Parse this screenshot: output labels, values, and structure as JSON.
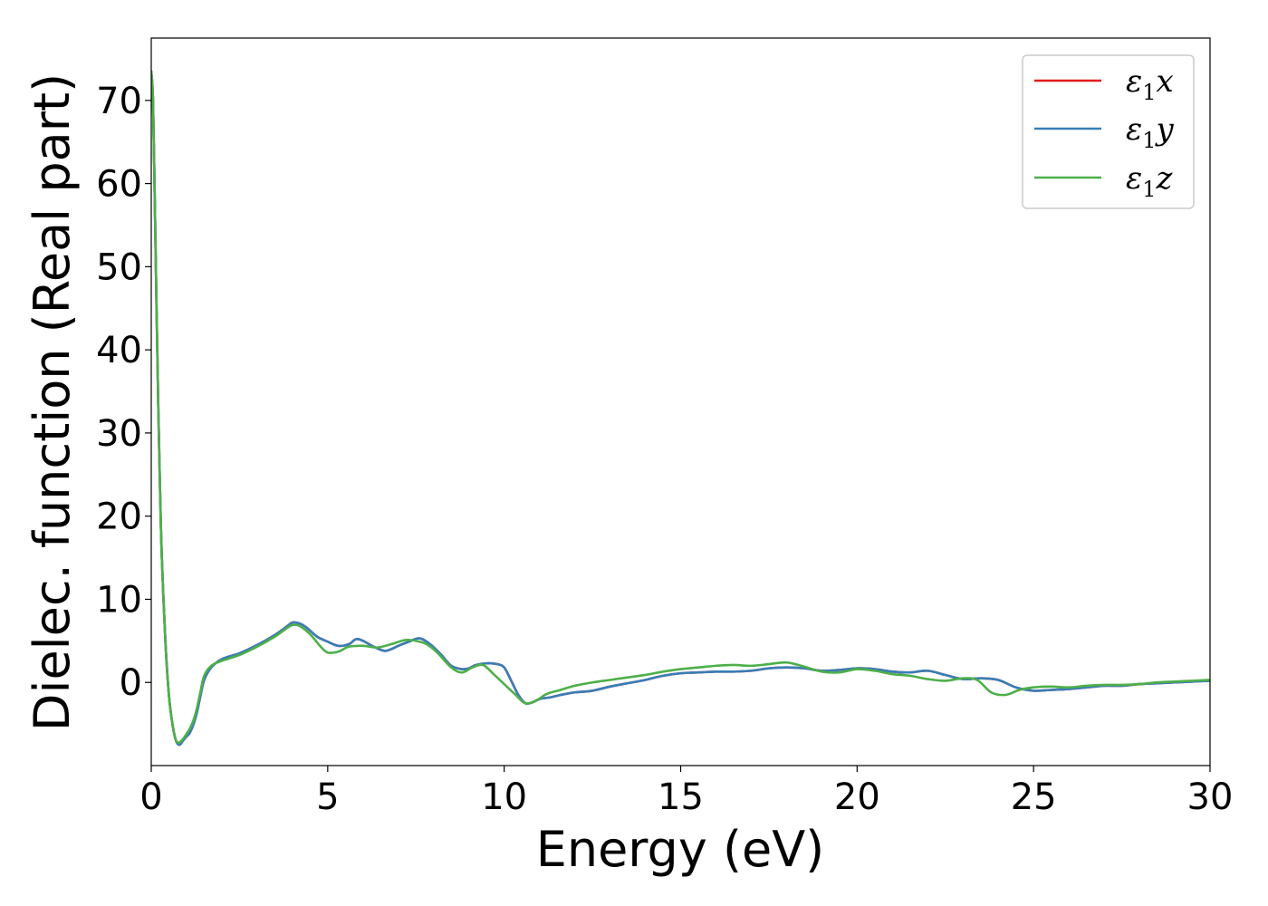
{
  "chart_data": {
    "type": "line",
    "title": "",
    "xlabel": "Energy (eV)",
    "ylabel": "Dielec. function (Real part)",
    "xlim": [
      0,
      30
    ],
    "ylim": [
      -10,
      77.5
    ],
    "xticks": [
      0,
      5,
      10,
      15,
      20,
      25,
      30
    ],
    "xtick_labels": [
      "0",
      "5",
      "10",
      "15",
      "20",
      "25",
      "30"
    ],
    "yticks": [
      0,
      10,
      20,
      30,
      40,
      50,
      60,
      70
    ],
    "ytick_labels": [
      "0",
      "10",
      "20",
      "30",
      "40",
      "50",
      "60",
      "70"
    ],
    "grid": false,
    "legend_position": "top-right",
    "series": [
      {
        "name": "ε₁x",
        "legend": {
          "base": "ε",
          "sub": "1",
          "var": "x"
        },
        "color": "#e41a1c",
        "x": [
          0,
          0.05,
          0.1,
          0.15,
          0.2,
          0.25,
          0.3,
          0.4,
          0.5,
          0.6,
          0.7,
          0.8,
          0.9,
          1.0,
          1.05,
          1.1,
          1.2,
          1.3,
          1.4,
          1.5,
          1.7,
          2.0,
          2.5,
          3.0,
          3.5,
          3.8,
          4.0,
          4.2,
          4.4,
          4.7,
          5.0,
          5.3,
          5.6,
          5.8,
          6.0,
          6.3,
          6.6,
          6.8,
          7.0,
          7.3,
          7.6,
          7.9,
          8.2,
          8.5,
          8.8,
          9.0,
          9.2,
          9.5,
          9.8,
          10.0,
          10.2,
          10.4,
          10.6,
          10.8,
          11.0,
          11.3,
          11.6,
          12.0,
          12.5,
          13.0,
          13.5,
          14.0,
          14.5,
          15.0,
          15.5,
          16.0,
          16.5,
          17.0,
          17.5,
          18.0,
          18.5,
          19.0,
          19.5,
          20.0,
          20.5,
          21.0,
          21.5,
          22.0,
          22.5,
          23.0,
          23.5,
          24.0,
          24.5,
          25.0,
          25.5,
          26.0,
          26.5,
          27.0,
          27.5,
          28.0,
          28.5,
          29.0,
          29.5,
          30.0
        ],
        "y": [
          73.5,
          70,
          58,
          45,
          33,
          23,
          15,
          5,
          -1.5,
          -5,
          -7,
          -7.5,
          -7,
          -6.5,
          -6.3,
          -6,
          -5,
          -3.5,
          -1.5,
          0.3,
          1.8,
          2.8,
          3.5,
          4.5,
          5.7,
          6.6,
          7.2,
          7.1,
          6.6,
          5.5,
          4.9,
          4.4,
          4.6,
          5.2,
          5.0,
          4.3,
          3.8,
          4.0,
          4.4,
          4.9,
          5.3,
          4.6,
          3.4,
          2.0,
          1.6,
          1.7,
          2.1,
          2.3,
          2.2,
          1.8,
          0.2,
          -1.5,
          -2.5,
          -2.4,
          -2.0,
          -1.8,
          -1.5,
          -1.2,
          -1.0,
          -0.5,
          -0.1,
          0.3,
          0.8,
          1.1,
          1.2,
          1.3,
          1.3,
          1.4,
          1.7,
          1.8,
          1.7,
          1.4,
          1.5,
          1.7,
          1.6,
          1.3,
          1.2,
          1.4,
          0.9,
          0.4,
          0.5,
          0.3,
          -0.6,
          -1.0,
          -0.9,
          -0.8,
          -0.6,
          -0.4,
          -0.4,
          -0.2,
          -0.1,
          0.0,
          0.1,
          0.2
        ]
      },
      {
        "name": "ε₁y",
        "legend": {
          "base": "ε",
          "sub": "1",
          "var": "y"
        },
        "color": "#377eb8",
        "x": [
          0,
          0.05,
          0.1,
          0.15,
          0.2,
          0.25,
          0.3,
          0.4,
          0.5,
          0.6,
          0.7,
          0.8,
          0.9,
          1.0,
          1.05,
          1.1,
          1.2,
          1.3,
          1.4,
          1.5,
          1.7,
          2.0,
          2.5,
          3.0,
          3.5,
          3.8,
          4.0,
          4.2,
          4.4,
          4.7,
          5.0,
          5.3,
          5.6,
          5.8,
          6.0,
          6.3,
          6.6,
          6.8,
          7.0,
          7.3,
          7.6,
          7.9,
          8.2,
          8.5,
          8.8,
          9.0,
          9.2,
          9.5,
          9.8,
          10.0,
          10.2,
          10.4,
          10.6,
          10.8,
          11.0,
          11.3,
          11.6,
          12.0,
          12.5,
          13.0,
          13.5,
          14.0,
          14.5,
          15.0,
          15.5,
          16.0,
          16.5,
          17.0,
          17.5,
          18.0,
          18.5,
          19.0,
          19.5,
          20.0,
          20.5,
          21.0,
          21.5,
          22.0,
          22.5,
          23.0,
          23.5,
          24.0,
          24.5,
          25.0,
          25.5,
          26.0,
          26.5,
          27.0,
          27.5,
          28.0,
          28.5,
          29.0,
          29.5,
          30.0
        ],
        "y": [
          73.5,
          70,
          58,
          45,
          33,
          23,
          15,
          5,
          -1.5,
          -5,
          -7,
          -7.5,
          -7,
          -6.5,
          -6.3,
          -6,
          -5,
          -3.5,
          -1.5,
          0.3,
          1.8,
          2.8,
          3.5,
          4.5,
          5.7,
          6.6,
          7.2,
          7.1,
          6.6,
          5.5,
          4.9,
          4.4,
          4.6,
          5.2,
          5.0,
          4.3,
          3.8,
          4.0,
          4.4,
          4.9,
          5.3,
          4.6,
          3.4,
          2.0,
          1.6,
          1.7,
          2.1,
          2.3,
          2.2,
          1.8,
          0.2,
          -1.5,
          -2.5,
          -2.4,
          -2.0,
          -1.8,
          -1.5,
          -1.2,
          -1.0,
          -0.5,
          -0.1,
          0.3,
          0.8,
          1.1,
          1.2,
          1.3,
          1.3,
          1.4,
          1.7,
          1.8,
          1.7,
          1.4,
          1.5,
          1.7,
          1.6,
          1.3,
          1.2,
          1.4,
          0.9,
          0.4,
          0.5,
          0.3,
          -0.6,
          -1.0,
          -0.9,
          -0.8,
          -0.6,
          -0.4,
          -0.4,
          -0.2,
          -0.1,
          0.0,
          0.1,
          0.2
        ]
      },
      {
        "name": "ε₁z",
        "legend": {
          "base": "ε",
          "sub": "1",
          "var": "z"
        },
        "color": "#4daf4a",
        "x": [
          0,
          0.05,
          0.1,
          0.15,
          0.2,
          0.25,
          0.3,
          0.4,
          0.5,
          0.6,
          0.7,
          0.8,
          0.9,
          1.0,
          1.1,
          1.2,
          1.3,
          1.4,
          1.5,
          1.7,
          2.0,
          2.5,
          3.0,
          3.5,
          3.8,
          4.0,
          4.2,
          4.5,
          4.8,
          5.0,
          5.3,
          5.6,
          6.0,
          6.4,
          6.8,
          7.2,
          7.5,
          7.8,
          8.1,
          8.5,
          8.8,
          9.1,
          9.4,
          9.7,
          10.0,
          10.3,
          10.6,
          10.9,
          11.2,
          11.6,
          12.0,
          12.5,
          13.0,
          13.5,
          14.0,
          14.5,
          15.0,
          15.5,
          16.0,
          16.5,
          17.0,
          17.5,
          18.0,
          18.5,
          19.0,
          19.5,
          20.0,
          20.5,
          21.0,
          21.5,
          22.0,
          22.5,
          23.0,
          23.4,
          23.8,
          24.2,
          24.6,
          25.0,
          25.5,
          26.0,
          26.5,
          27.0,
          27.5,
          28.0,
          28.5,
          29.0,
          29.5,
          30.0
        ],
        "y": [
          73.5,
          70,
          58,
          45,
          33,
          23,
          15,
          5,
          -1.5,
          -5,
          -7,
          -7.2,
          -6.8,
          -6.2,
          -5.5,
          -4.5,
          -3.0,
          -1.0,
          0.8,
          2.0,
          2.6,
          3.3,
          4.3,
          5.5,
          6.4,
          6.9,
          6.8,
          5.8,
          4.3,
          3.6,
          3.7,
          4.3,
          4.4,
          4.2,
          4.6,
          5.1,
          5.0,
          4.6,
          3.6,
          1.8,
          1.2,
          1.8,
          2.1,
          1.0,
          -0.2,
          -1.4,
          -2.5,
          -2.2,
          -1.4,
          -0.9,
          -0.4,
          0.0,
          0.3,
          0.6,
          0.9,
          1.3,
          1.6,
          1.8,
          2.0,
          2.1,
          2.0,
          2.2,
          2.4,
          1.9,
          1.3,
          1.2,
          1.6,
          1.4,
          1.0,
          0.8,
          0.4,
          0.2,
          0.5,
          0.3,
          -1.2,
          -1.5,
          -0.9,
          -0.6,
          -0.5,
          -0.6,
          -0.4,
          -0.3,
          -0.3,
          -0.2,
          0.0,
          0.1,
          0.2,
          0.3
        ]
      }
    ]
  }
}
